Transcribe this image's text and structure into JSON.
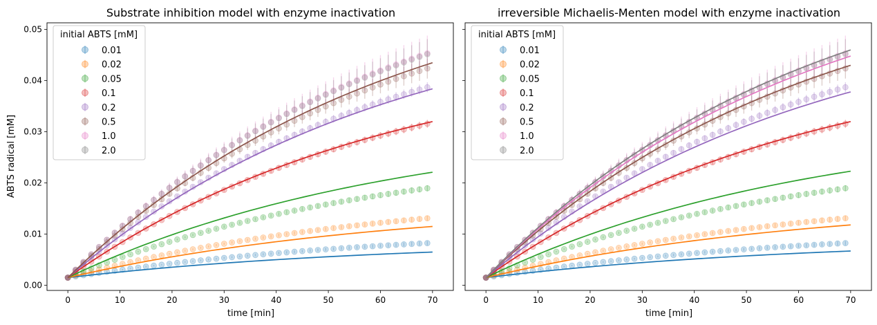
{
  "chart_data": [
    {
      "type": "scatter",
      "title": "Substrate inhibition model with enzyme inactivation",
      "xlabel": "time [min]",
      "ylabel": "ABTS radical [mM]",
      "xlim": [
        -4,
        74
      ],
      "ylim": [
        -0.001,
        0.0513
      ],
      "xticks": [
        "0",
        "10",
        "20",
        "30",
        "40",
        "50",
        "60",
        "70"
      ],
      "yticks": [
        "0.00",
        "0.01",
        "0.02",
        "0.03",
        "0.04",
        "0.05"
      ],
      "grid": false,
      "legend": {
        "title": "initial ABTS [mM]",
        "placement": "top-left"
      },
      "series": [
        {
          "name": "0.01",
          "color": "#1f77b4",
          "obs_end": 0.0083,
          "obs_err": 0.0004,
          "fit_end": 0.0065
        },
        {
          "name": "0.02",
          "color": "#ff7f0e",
          "obs_end": 0.0132,
          "obs_err": 0.0005,
          "fit_end": 0.0115
        },
        {
          "name": "0.05",
          "color": "#2ca02c",
          "obs_end": 0.0191,
          "obs_err": 0.0006,
          "fit_end": 0.0221
        },
        {
          "name": "0.1",
          "color": "#d62728",
          "obs_end": 0.0318,
          "obs_err": 0.0008,
          "fit_end": 0.032
        },
        {
          "name": "0.2",
          "color": "#9467bd",
          "obs_end": 0.039,
          "obs_err": 0.001,
          "fit_end": 0.0384
        },
        {
          "name": "0.5",
          "color": "#8c564b",
          "obs_end": 0.0427,
          "obs_err": 0.002,
          "fit_end": 0.0435
        },
        {
          "name": "1.0",
          "color": "#e377c2",
          "obs_end": 0.0457,
          "obs_err": 0.0035,
          "fit_end": null
        },
        {
          "name": "2.0",
          "color": "#7f7f7f",
          "obs_end": 0.0455,
          "obs_err": 0.003,
          "fit_end": null
        }
      ]
    },
    {
      "type": "scatter",
      "title": "irreversible Michaelis-Menten model with enzyme inactivation",
      "xlabel": "time [min]",
      "ylabel": "",
      "xlim": [
        -4,
        74
      ],
      "ylim": [
        -0.001,
        0.0513
      ],
      "xticks": [
        "0",
        "10",
        "20",
        "30",
        "40",
        "50",
        "60",
        "70"
      ],
      "yticks": [],
      "grid": false,
      "legend": {
        "title": "initial ABTS [mM]",
        "placement": "top-left"
      },
      "series": [
        {
          "name": "0.01",
          "color": "#1f77b4",
          "obs_end": 0.0083,
          "obs_err": 0.0004,
          "fit_end": 0.0067
        },
        {
          "name": "0.02",
          "color": "#ff7f0e",
          "obs_end": 0.0132,
          "obs_err": 0.0005,
          "fit_end": 0.0118
        },
        {
          "name": "0.05",
          "color": "#2ca02c",
          "obs_end": 0.0191,
          "obs_err": 0.0006,
          "fit_end": 0.0223
        },
        {
          "name": "0.1",
          "color": "#d62728",
          "obs_end": 0.0318,
          "obs_err": 0.0008,
          "fit_end": 0.032
        },
        {
          "name": "0.2",
          "color": "#9467bd",
          "obs_end": 0.039,
          "obs_err": 0.001,
          "fit_end": 0.0378
        },
        {
          "name": "0.5",
          "color": "#8c564b",
          "obs_end": 0.0427,
          "obs_err": 0.002,
          "fit_end": 0.043
        },
        {
          "name": "1.0",
          "color": "#e377c2",
          "obs_end": 0.0457,
          "obs_err": 0.0035,
          "fit_end": 0.0448
        },
        {
          "name": "2.0",
          "color": "#7f7f7f",
          "obs_end": 0.0455,
          "obs_err": 0.003,
          "fit_end": 0.046
        }
      ]
    }
  ]
}
